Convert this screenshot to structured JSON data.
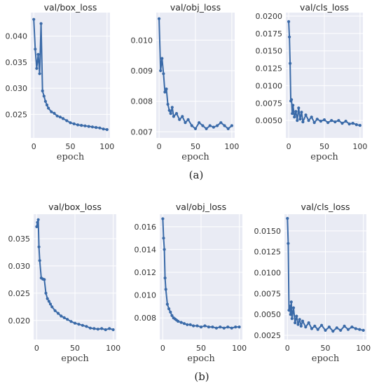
{
  "style": {
    "panel_bg": "#e9ebf4",
    "grid_color": "#ffffff",
    "line_color": "#3a6aa8"
  },
  "captions": [
    "(a)",
    "(b)"
  ],
  "chart_data": [
    {
      "type": "line",
      "group": "(a)",
      "title": "val/box_loss",
      "xlabel": "epoch",
      "grid": true,
      "xlim": [
        -4,
        104
      ],
      "ylim": [
        0.0205,
        0.0445
      ],
      "x_ticks": [
        0,
        50,
        100
      ],
      "x_tick_labels": [
        "0",
        "50",
        "100"
      ],
      "y_ticks": [
        0.025,
        0.03,
        0.035,
        0.04
      ],
      "y_tick_labels": [
        "0.025",
        "0.030",
        "0.035",
        "0.040"
      ],
      "series": [
        {
          "x": [
            0,
            2,
            4,
            6,
            8,
            10,
            12,
            14,
            16,
            18,
            20,
            24,
            28,
            32,
            36,
            40,
            45,
            50,
            55,
            60,
            65,
            70,
            75,
            80,
            85,
            90,
            95,
            100
          ],
          "y": [
            0.0432,
            0.0375,
            0.0338,
            0.0365,
            0.0328,
            0.0424,
            0.0295,
            0.0285,
            0.0275,
            0.0268,
            0.0262,
            0.0255,
            0.0252,
            0.0247,
            0.0245,
            0.0242,
            0.0238,
            0.0234,
            0.0232,
            0.023,
            0.0229,
            0.0228,
            0.0227,
            0.0226,
            0.0225,
            0.0224,
            0.0222,
            0.0221
          ]
        }
      ]
    },
    {
      "type": "line",
      "group": "(a)",
      "title": "val/obj_loss",
      "xlabel": "epoch",
      "grid": true,
      "xlim": [
        -4,
        104
      ],
      "ylim": [
        0.0068,
        0.0109
      ],
      "x_ticks": [
        0,
        50,
        100
      ],
      "x_tick_labels": [
        "0",
        "50",
        "100"
      ],
      "y_ticks": [
        0.007,
        0.008,
        0.009,
        0.01
      ],
      "y_tick_labels": [
        "0.007",
        "0.008",
        "0.009",
        "0.010"
      ],
      "series": [
        {
          "x": [
            0,
            2,
            4,
            6,
            8,
            10,
            12,
            14,
            16,
            18,
            20,
            24,
            28,
            32,
            36,
            40,
            45,
            50,
            55,
            60,
            65,
            70,
            75,
            80,
            85,
            90,
            95,
            100
          ],
          "y": [
            0.0107,
            0.009,
            0.0094,
            0.0089,
            0.0083,
            0.0084,
            0.0079,
            0.0077,
            0.0076,
            0.0078,
            0.0075,
            0.0076,
            0.0074,
            0.0075,
            0.0073,
            0.0074,
            0.0072,
            0.0071,
            0.0073,
            0.0072,
            0.0071,
            0.0072,
            0.00715,
            0.0072,
            0.0073,
            0.0072,
            0.0071,
            0.0072
          ]
        }
      ]
    },
    {
      "type": "line",
      "group": "(a)",
      "title": "val/cls_loss",
      "xlabel": "epoch",
      "grid": true,
      "xlim": [
        -4,
        104
      ],
      "ylim": [
        0.0025,
        0.0205
      ],
      "x_ticks": [
        0,
        50,
        100
      ],
      "x_tick_labels": [
        "0",
        "50",
        "100"
      ],
      "y_ticks": [
        0.005,
        0.0075,
        0.01,
        0.0125,
        0.015,
        0.0175,
        0.02
      ],
      "y_tick_labels": [
        "0.0050",
        "0.0075",
        "0.0100",
        "0.0125",
        "0.0150",
        "0.0175",
        "0.0200"
      ],
      "series": [
        {
          "x": [
            0,
            1,
            2,
            3,
            4,
            5,
            6,
            8,
            10,
            12,
            14,
            16,
            18,
            20,
            24,
            28,
            32,
            36,
            40,
            45,
            50,
            55,
            60,
            65,
            70,
            75,
            80,
            85,
            90,
            95,
            100
          ],
          "y": [
            0.0192,
            0.017,
            0.0132,
            0.0078,
            0.008,
            0.006,
            0.0072,
            0.0055,
            0.0063,
            0.005,
            0.0068,
            0.0052,
            0.0062,
            0.0048,
            0.0058,
            0.005,
            0.0055,
            0.0047,
            0.0052,
            0.0049,
            0.0051,
            0.0047,
            0.005,
            0.0048,
            0.005,
            0.0046,
            0.0049,
            0.0045,
            0.0046,
            0.0044,
            0.0043
          ]
        }
      ]
    },
    {
      "type": "line",
      "group": "(b)",
      "title": "val/box_loss",
      "xlabel": "epoch",
      "grid": true,
      "xlim": [
        -4,
        104
      ],
      "ylim": [
        0.0165,
        0.0395
      ],
      "x_ticks": [
        0,
        50,
        100
      ],
      "x_tick_labels": [
        "0",
        "50",
        "100"
      ],
      "y_ticks": [
        0.02,
        0.025,
        0.03,
        0.035
      ],
      "y_tick_labels": [
        "0.020",
        "0.025",
        "0.030",
        "0.035"
      ],
      "series": [
        {
          "x": [
            0,
            1,
            2,
            3,
            4,
            6,
            8,
            10,
            12,
            14,
            16,
            18,
            20,
            24,
            28,
            32,
            36,
            40,
            45,
            50,
            55,
            60,
            65,
            70,
            75,
            80,
            85,
            90,
            95,
            100
          ],
          "y": [
            0.0372,
            0.038,
            0.0385,
            0.0335,
            0.031,
            0.0278,
            0.0276,
            0.0275,
            0.025,
            0.024,
            0.0235,
            0.023,
            0.0225,
            0.0218,
            0.0213,
            0.0208,
            0.0205,
            0.0202,
            0.0198,
            0.0195,
            0.0193,
            0.0191,
            0.0189,
            0.0186,
            0.0185,
            0.0184,
            0.0185,
            0.0183,
            0.0185,
            0.0183
          ]
        }
      ]
    },
    {
      "type": "line",
      "group": "(b)",
      "title": "val/obj_loss",
      "xlabel": "epoch",
      "grid": true,
      "xlim": [
        -4,
        104
      ],
      "ylim": [
        0.0061,
        0.0171
      ],
      "x_ticks": [
        0,
        50,
        100
      ],
      "x_tick_labels": [
        "0",
        "50",
        "100"
      ],
      "y_ticks": [
        0.008,
        0.01,
        0.012,
        0.014,
        0.016
      ],
      "y_tick_labels": [
        "0.008",
        "0.010",
        "0.012",
        "0.014",
        "0.016"
      ],
      "series": [
        {
          "x": [
            0,
            1,
            2,
            3,
            4,
            6,
            8,
            10,
            12,
            14,
            16,
            18,
            20,
            24,
            28,
            32,
            36,
            40,
            45,
            50,
            55,
            60,
            65,
            70,
            75,
            80,
            85,
            90,
            95,
            100
          ],
          "y": [
            0.0167,
            0.015,
            0.014,
            0.0115,
            0.0105,
            0.0092,
            0.0088,
            0.0085,
            0.0082,
            0.008,
            0.0079,
            0.0078,
            0.0077,
            0.0076,
            0.0075,
            0.0074,
            0.0074,
            0.0073,
            0.0073,
            0.0072,
            0.0073,
            0.0072,
            0.0072,
            0.0071,
            0.0072,
            0.0071,
            0.0072,
            0.0071,
            0.0072,
            0.0072
          ]
        }
      ]
    },
    {
      "type": "line",
      "group": "(b)",
      "title": "val/cls_loss",
      "xlabel": "epoch",
      "grid": true,
      "xlim": [
        -4,
        104
      ],
      "ylim": [
        0.002,
        0.017
      ],
      "x_ticks": [
        0,
        50,
        100
      ],
      "x_tick_labels": [
        "0",
        "50",
        "100"
      ],
      "y_ticks": [
        0.0025,
        0.005,
        0.0075,
        0.01,
        0.0125,
        0.015
      ],
      "y_tick_labels": [
        "0.0025",
        "0.0050",
        "0.0075",
        "0.0100",
        "0.0125",
        "0.0150"
      ],
      "series": [
        {
          "x": [
            0,
            1,
            2,
            3,
            4,
            5,
            6,
            8,
            10,
            12,
            14,
            16,
            18,
            20,
            24,
            28,
            32,
            36,
            40,
            45,
            50,
            55,
            60,
            65,
            70,
            75,
            80,
            85,
            90,
            95,
            100
          ],
          "y": [
            0.0165,
            0.0135,
            0.0055,
            0.006,
            0.005,
            0.0065,
            0.0045,
            0.0058,
            0.004,
            0.0048,
            0.0038,
            0.0044,
            0.0036,
            0.0042,
            0.0035,
            0.004,
            0.0033,
            0.0036,
            0.0032,
            0.0037,
            0.0031,
            0.0035,
            0.003,
            0.0034,
            0.0031,
            0.0036,
            0.0032,
            0.0035,
            0.0033,
            0.0032,
            0.0031
          ]
        }
      ]
    }
  ]
}
